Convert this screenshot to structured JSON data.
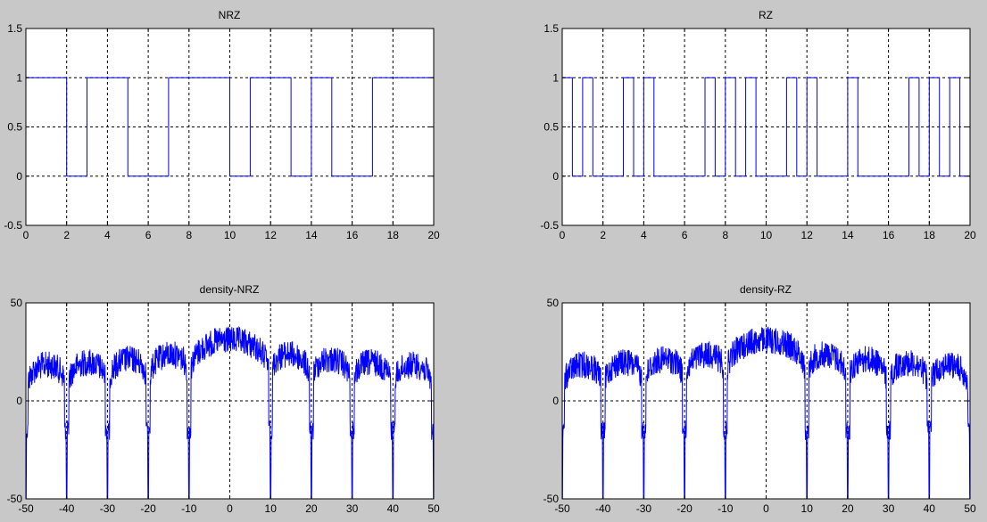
{
  "figure": {
    "background": "#c8c8c8",
    "axes_background": "#ffffff",
    "line_color": "#0000ff",
    "grid_color": "#000000"
  },
  "chart_data": [
    {
      "type": "line",
      "title": "NRZ",
      "xlabel": "",
      "ylabel": "",
      "xlim": [
        0,
        20
      ],
      "ylim": [
        -0.5,
        1.5
      ],
      "xticks": [
        "0",
        "2",
        "4",
        "6",
        "8",
        "10",
        "12",
        "14",
        "16",
        "18",
        "20"
      ],
      "yticks": [
        "-0.5",
        "0",
        "0.5",
        "1",
        "1.5"
      ],
      "xtick_values": [
        0,
        2,
        4,
        6,
        8,
        10,
        12,
        14,
        16,
        18,
        20
      ],
      "ytick_values": [
        -0.5,
        0,
        0.5,
        1,
        1.5
      ],
      "grid": true,
      "bit_duration": 1,
      "bits": [
        1,
        1,
        0,
        1,
        1,
        0,
        0,
        1,
        1,
        1,
        0,
        1,
        1,
        0,
        1,
        0,
        0,
        1,
        1,
        1
      ]
    },
    {
      "type": "line",
      "title": "RZ",
      "xlabel": "",
      "ylabel": "",
      "xlim": [
        0,
        20
      ],
      "ylim": [
        -0.5,
        1.5
      ],
      "xticks": [
        "0",
        "2",
        "4",
        "6",
        "8",
        "10",
        "12",
        "14",
        "16",
        "18",
        "20"
      ],
      "yticks": [
        "-0.5",
        "0",
        "0.5",
        "1",
        "1.5"
      ],
      "xtick_values": [
        0,
        2,
        4,
        6,
        8,
        10,
        12,
        14,
        16,
        18,
        20
      ],
      "ytick_values": [
        -0.5,
        0,
        0.5,
        1,
        1.5
      ],
      "grid": true,
      "bit_duration": 1,
      "pulse_width": 0.5,
      "bits": [
        1,
        1,
        0,
        1,
        1,
        0,
        0,
        1,
        1,
        1,
        0,
        1,
        1,
        0,
        1,
        0,
        0,
        1,
        1,
        1
      ]
    },
    {
      "type": "line",
      "title": "density-NRZ",
      "xlabel": "",
      "ylabel": "",
      "xlim": [
        -50,
        50
      ],
      "ylim": [
        -50,
        50
      ],
      "xticks": [
        "-50",
        "-40",
        "-30",
        "-20",
        "-10",
        "0",
        "10",
        "20",
        "30",
        "40",
        "50"
      ],
      "yticks": [
        "-50",
        "0",
        "50"
      ],
      "xtick_values": [
        -50,
        -40,
        -30,
        -20,
        -10,
        0,
        10,
        20,
        30,
        40,
        50
      ],
      "ytick_values": [
        -50,
        0,
        50
      ],
      "grid": true,
      "peak_db": 38,
      "null_spacing": 10,
      "null_floor_db": -50
    },
    {
      "type": "line",
      "title": "density-RZ",
      "xlabel": "",
      "ylabel": "",
      "xlim": [
        -50,
        50
      ],
      "ylim": [
        -50,
        50
      ],
      "xticks": [
        "-50",
        "-40",
        "-30",
        "-20",
        "-10",
        "0",
        "10",
        "20",
        "30",
        "40",
        "50"
      ],
      "yticks": [
        "-50",
        "0",
        "50"
      ],
      "xtick_values": [
        -50,
        -40,
        -30,
        -20,
        -10,
        0,
        10,
        20,
        30,
        40,
        50
      ],
      "ytick_values": [
        -50,
        0,
        50
      ],
      "grid": true,
      "peak_db": 38,
      "null_spacing": 10,
      "null_floor_db": -50
    }
  ]
}
